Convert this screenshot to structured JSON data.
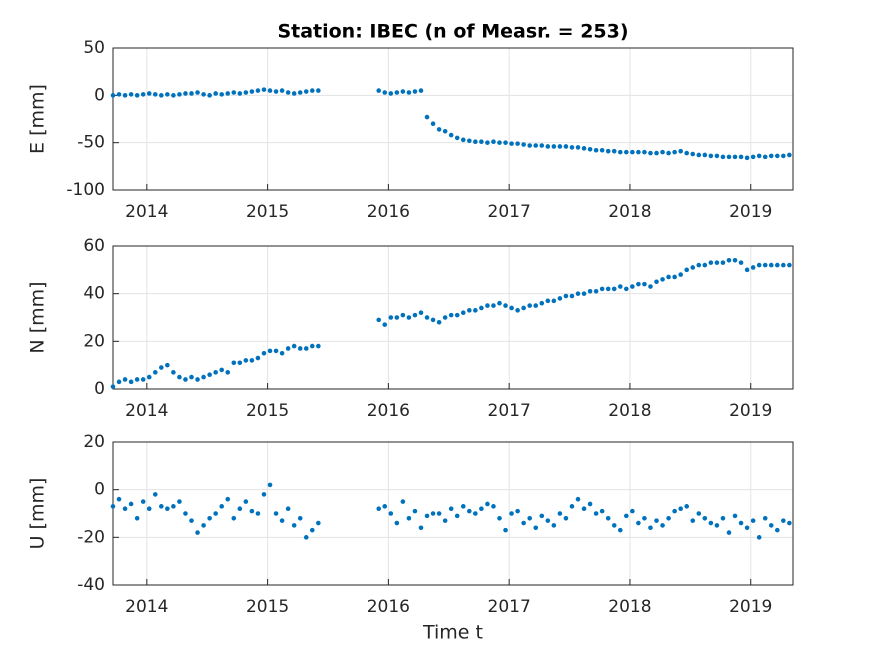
{
  "chart_data": [
    {
      "type": "scatter",
      "title": "Station: IBEC (n of Measr. = 253)",
      "ylabel": "E [mm]",
      "color": "#0072bd",
      "grid": true,
      "xlim": [
        2013.72,
        2019.35
      ],
      "xticks": [
        2014,
        2015,
        2016,
        2017,
        2018,
        2019
      ],
      "ylim": [
        -100,
        50
      ],
      "yticks": [
        -100,
        -50,
        0,
        50
      ],
      "x": [
        2013.72,
        2013.77,
        2013.82,
        2013.87,
        2013.92,
        2013.97,
        2014.02,
        2014.07,
        2014.12,
        2014.17,
        2014.22,
        2014.27,
        2014.32,
        2014.37,
        2014.42,
        2014.47,
        2014.52,
        2014.57,
        2014.62,
        2014.67,
        2014.72,
        2014.77,
        2014.82,
        2014.87,
        2014.92,
        2014.97,
        2015.02,
        2015.07,
        2015.12,
        2015.17,
        2015.22,
        2015.27,
        2015.32,
        2015.37,
        2015.42,
        2015.92,
        2015.97,
        2016.02,
        2016.07,
        2016.12,
        2016.17,
        2016.22,
        2016.27,
        2016.32,
        2016.37,
        2016.42,
        2016.47,
        2016.52,
        2016.57,
        2016.62,
        2016.67,
        2016.72,
        2016.77,
        2016.82,
        2016.87,
        2016.92,
        2016.97,
        2017.02,
        2017.07,
        2017.12,
        2017.17,
        2017.22,
        2017.27,
        2017.32,
        2017.37,
        2017.42,
        2017.47,
        2017.52,
        2017.57,
        2017.62,
        2017.67,
        2017.72,
        2017.77,
        2017.82,
        2017.87,
        2017.92,
        2017.97,
        2018.02,
        2018.07,
        2018.12,
        2018.17,
        2018.22,
        2018.27,
        2018.32,
        2018.37,
        2018.42,
        2018.47,
        2018.52,
        2018.57,
        2018.62,
        2018.67,
        2018.72,
        2018.77,
        2018.82,
        2018.87,
        2018.92,
        2018.97,
        2019.02,
        2019.07,
        2019.12,
        2019.17,
        2019.22,
        2019.27,
        2019.32
      ],
      "values": [
        0,
        1,
        0,
        1,
        0,
        1,
        2,
        1,
        0,
        1,
        0,
        1,
        2,
        2,
        3,
        1,
        0,
        2,
        1,
        2,
        3,
        2,
        3,
        4,
        5,
        6,
        5,
        4,
        5,
        3,
        2,
        3,
        4,
        5,
        5,
        5,
        3,
        2,
        3,
        4,
        3,
        4,
        5,
        -23,
        -30,
        -36,
        -38,
        -42,
        -45,
        -47,
        -48,
        -49,
        -49,
        -50,
        -49,
        -50,
        -50,
        -51,
        -51,
        -52,
        -53,
        -53,
        -53,
        -54,
        -54,
        -54,
        -54,
        -55,
        -55,
        -56,
        -57,
        -58,
        -58,
        -59,
        -59,
        -60,
        -60,
        -60,
        -60,
        -60,
        -61,
        -61,
        -60,
        -61,
        -60,
        -59,
        -61,
        -62,
        -63,
        -63,
        -64,
        -64,
        -65,
        -65,
        -65,
        -65,
        -66,
        -65,
        -64,
        -65,
        -64,
        -64,
        -64,
        -63
      ]
    },
    {
      "type": "scatter",
      "ylabel": "N [mm]",
      "color": "#0072bd",
      "grid": true,
      "xlim": [
        2013.72,
        2019.35
      ],
      "xticks": [
        2014,
        2015,
        2016,
        2017,
        2018,
        2019
      ],
      "ylim": [
        0,
        60
      ],
      "yticks": [
        0,
        20,
        40,
        60
      ],
      "x": [
        2013.72,
        2013.77,
        2013.82,
        2013.87,
        2013.92,
        2013.97,
        2014.02,
        2014.07,
        2014.12,
        2014.17,
        2014.22,
        2014.27,
        2014.32,
        2014.37,
        2014.42,
        2014.47,
        2014.52,
        2014.57,
        2014.62,
        2014.67,
        2014.72,
        2014.77,
        2014.82,
        2014.87,
        2014.92,
        2014.97,
        2015.02,
        2015.07,
        2015.12,
        2015.17,
        2015.22,
        2015.27,
        2015.32,
        2015.37,
        2015.42,
        2015.92,
        2015.97,
        2016.02,
        2016.07,
        2016.12,
        2016.17,
        2016.22,
        2016.27,
        2016.32,
        2016.37,
        2016.42,
        2016.47,
        2016.52,
        2016.57,
        2016.62,
        2016.67,
        2016.72,
        2016.77,
        2016.82,
        2016.87,
        2016.92,
        2016.97,
        2017.02,
        2017.07,
        2017.12,
        2017.17,
        2017.22,
        2017.27,
        2017.32,
        2017.37,
        2017.42,
        2017.47,
        2017.52,
        2017.57,
        2017.62,
        2017.67,
        2017.72,
        2017.77,
        2017.82,
        2017.87,
        2017.92,
        2017.97,
        2018.02,
        2018.07,
        2018.12,
        2018.17,
        2018.22,
        2018.27,
        2018.32,
        2018.37,
        2018.42,
        2018.47,
        2018.52,
        2018.57,
        2018.62,
        2018.67,
        2018.72,
        2018.77,
        2018.82,
        2018.87,
        2018.92,
        2018.97,
        2019.02,
        2019.07,
        2019.12,
        2019.17,
        2019.22,
        2019.27,
        2019.32
      ],
      "values": [
        1,
        3,
        4,
        3,
        4,
        4,
        5,
        7,
        9,
        10,
        7,
        5,
        4,
        5,
        4,
        5,
        6,
        7,
        8,
        7,
        11,
        11,
        12,
        12,
        13,
        15,
        16,
        16,
        15,
        17,
        18,
        17,
        17,
        18,
        18,
        29,
        27,
        30,
        30,
        31,
        30,
        31,
        32,
        30,
        29,
        28,
        30,
        31,
        31,
        32,
        33,
        33,
        34,
        35,
        35,
        36,
        35,
        34,
        33,
        34,
        35,
        35,
        36,
        37,
        37,
        38,
        39,
        39,
        40,
        40,
        41,
        41,
        42,
        42,
        42,
        43,
        42,
        43,
        44,
        44,
        43,
        45,
        46,
        47,
        47,
        48,
        50,
        51,
        52,
        52,
        53,
        53,
        53,
        54,
        54,
        53,
        50,
        51,
        52,
        52,
        52,
        52,
        52,
        52
      ]
    },
    {
      "type": "scatter",
      "ylabel": "U [mm]",
      "xlabel": "Time t",
      "color": "#0072bd",
      "grid": true,
      "xlim": [
        2013.72,
        2019.35
      ],
      "xticks": [
        2014,
        2015,
        2016,
        2017,
        2018,
        2019
      ],
      "ylim": [
        -40,
        20
      ],
      "yticks": [
        -40,
        -20,
        0,
        20
      ],
      "x": [
        2013.72,
        2013.77,
        2013.82,
        2013.87,
        2013.92,
        2013.97,
        2014.02,
        2014.07,
        2014.12,
        2014.17,
        2014.22,
        2014.27,
        2014.32,
        2014.37,
        2014.42,
        2014.47,
        2014.52,
        2014.57,
        2014.62,
        2014.67,
        2014.72,
        2014.77,
        2014.82,
        2014.87,
        2014.92,
        2014.97,
        2015.02,
        2015.07,
        2015.12,
        2015.17,
        2015.22,
        2015.27,
        2015.32,
        2015.37,
        2015.42,
        2015.92,
        2015.97,
        2016.02,
        2016.07,
        2016.12,
        2016.17,
        2016.22,
        2016.27,
        2016.32,
        2016.37,
        2016.42,
        2016.47,
        2016.52,
        2016.57,
        2016.62,
        2016.67,
        2016.72,
        2016.77,
        2016.82,
        2016.87,
        2016.92,
        2016.97,
        2017.02,
        2017.07,
        2017.12,
        2017.17,
        2017.22,
        2017.27,
        2017.32,
        2017.37,
        2017.42,
        2017.47,
        2017.52,
        2017.57,
        2017.62,
        2017.67,
        2017.72,
        2017.77,
        2017.82,
        2017.87,
        2017.92,
        2017.97,
        2018.02,
        2018.07,
        2018.12,
        2018.17,
        2018.22,
        2018.27,
        2018.32,
        2018.37,
        2018.42,
        2018.47,
        2018.52,
        2018.57,
        2018.62,
        2018.67,
        2018.72,
        2018.77,
        2018.82,
        2018.87,
        2018.92,
        2018.97,
        2019.02,
        2019.07,
        2019.12,
        2019.17,
        2019.22,
        2019.27,
        2019.32
      ],
      "values": [
        -7,
        -4,
        -8,
        -6,
        -12,
        -5,
        -8,
        -2,
        -7,
        -8,
        -7,
        -5,
        -10,
        -13,
        -18,
        -15,
        -12,
        -10,
        -7,
        -4,
        -12,
        -8,
        -5,
        -9,
        -10,
        -2,
        2,
        -10,
        -13,
        -8,
        -15,
        -12,
        -20,
        -17,
        -14,
        -8,
        -7,
        -10,
        -14,
        -5,
        -12,
        -9,
        -16,
        -11,
        -10,
        -10,
        -13,
        -8,
        -11,
        -7,
        -9,
        -10,
        -8,
        -6,
        -7,
        -12,
        -17,
        -10,
        -9,
        -14,
        -12,
        -16,
        -11,
        -13,
        -15,
        -10,
        -12,
        -7,
        -4,
        -8,
        -6,
        -10,
        -9,
        -12,
        -15,
        -17,
        -11,
        -9,
        -14,
        -12,
        -16,
        -13,
        -15,
        -12,
        -9,
        -8,
        -7,
        -13,
        -10,
        -12,
        -14,
        -15,
        -12,
        -18,
        -11,
        -14,
        -16,
        -13,
        -20,
        -12,
        -15,
        -17,
        -13,
        -14
      ]
    }
  ]
}
